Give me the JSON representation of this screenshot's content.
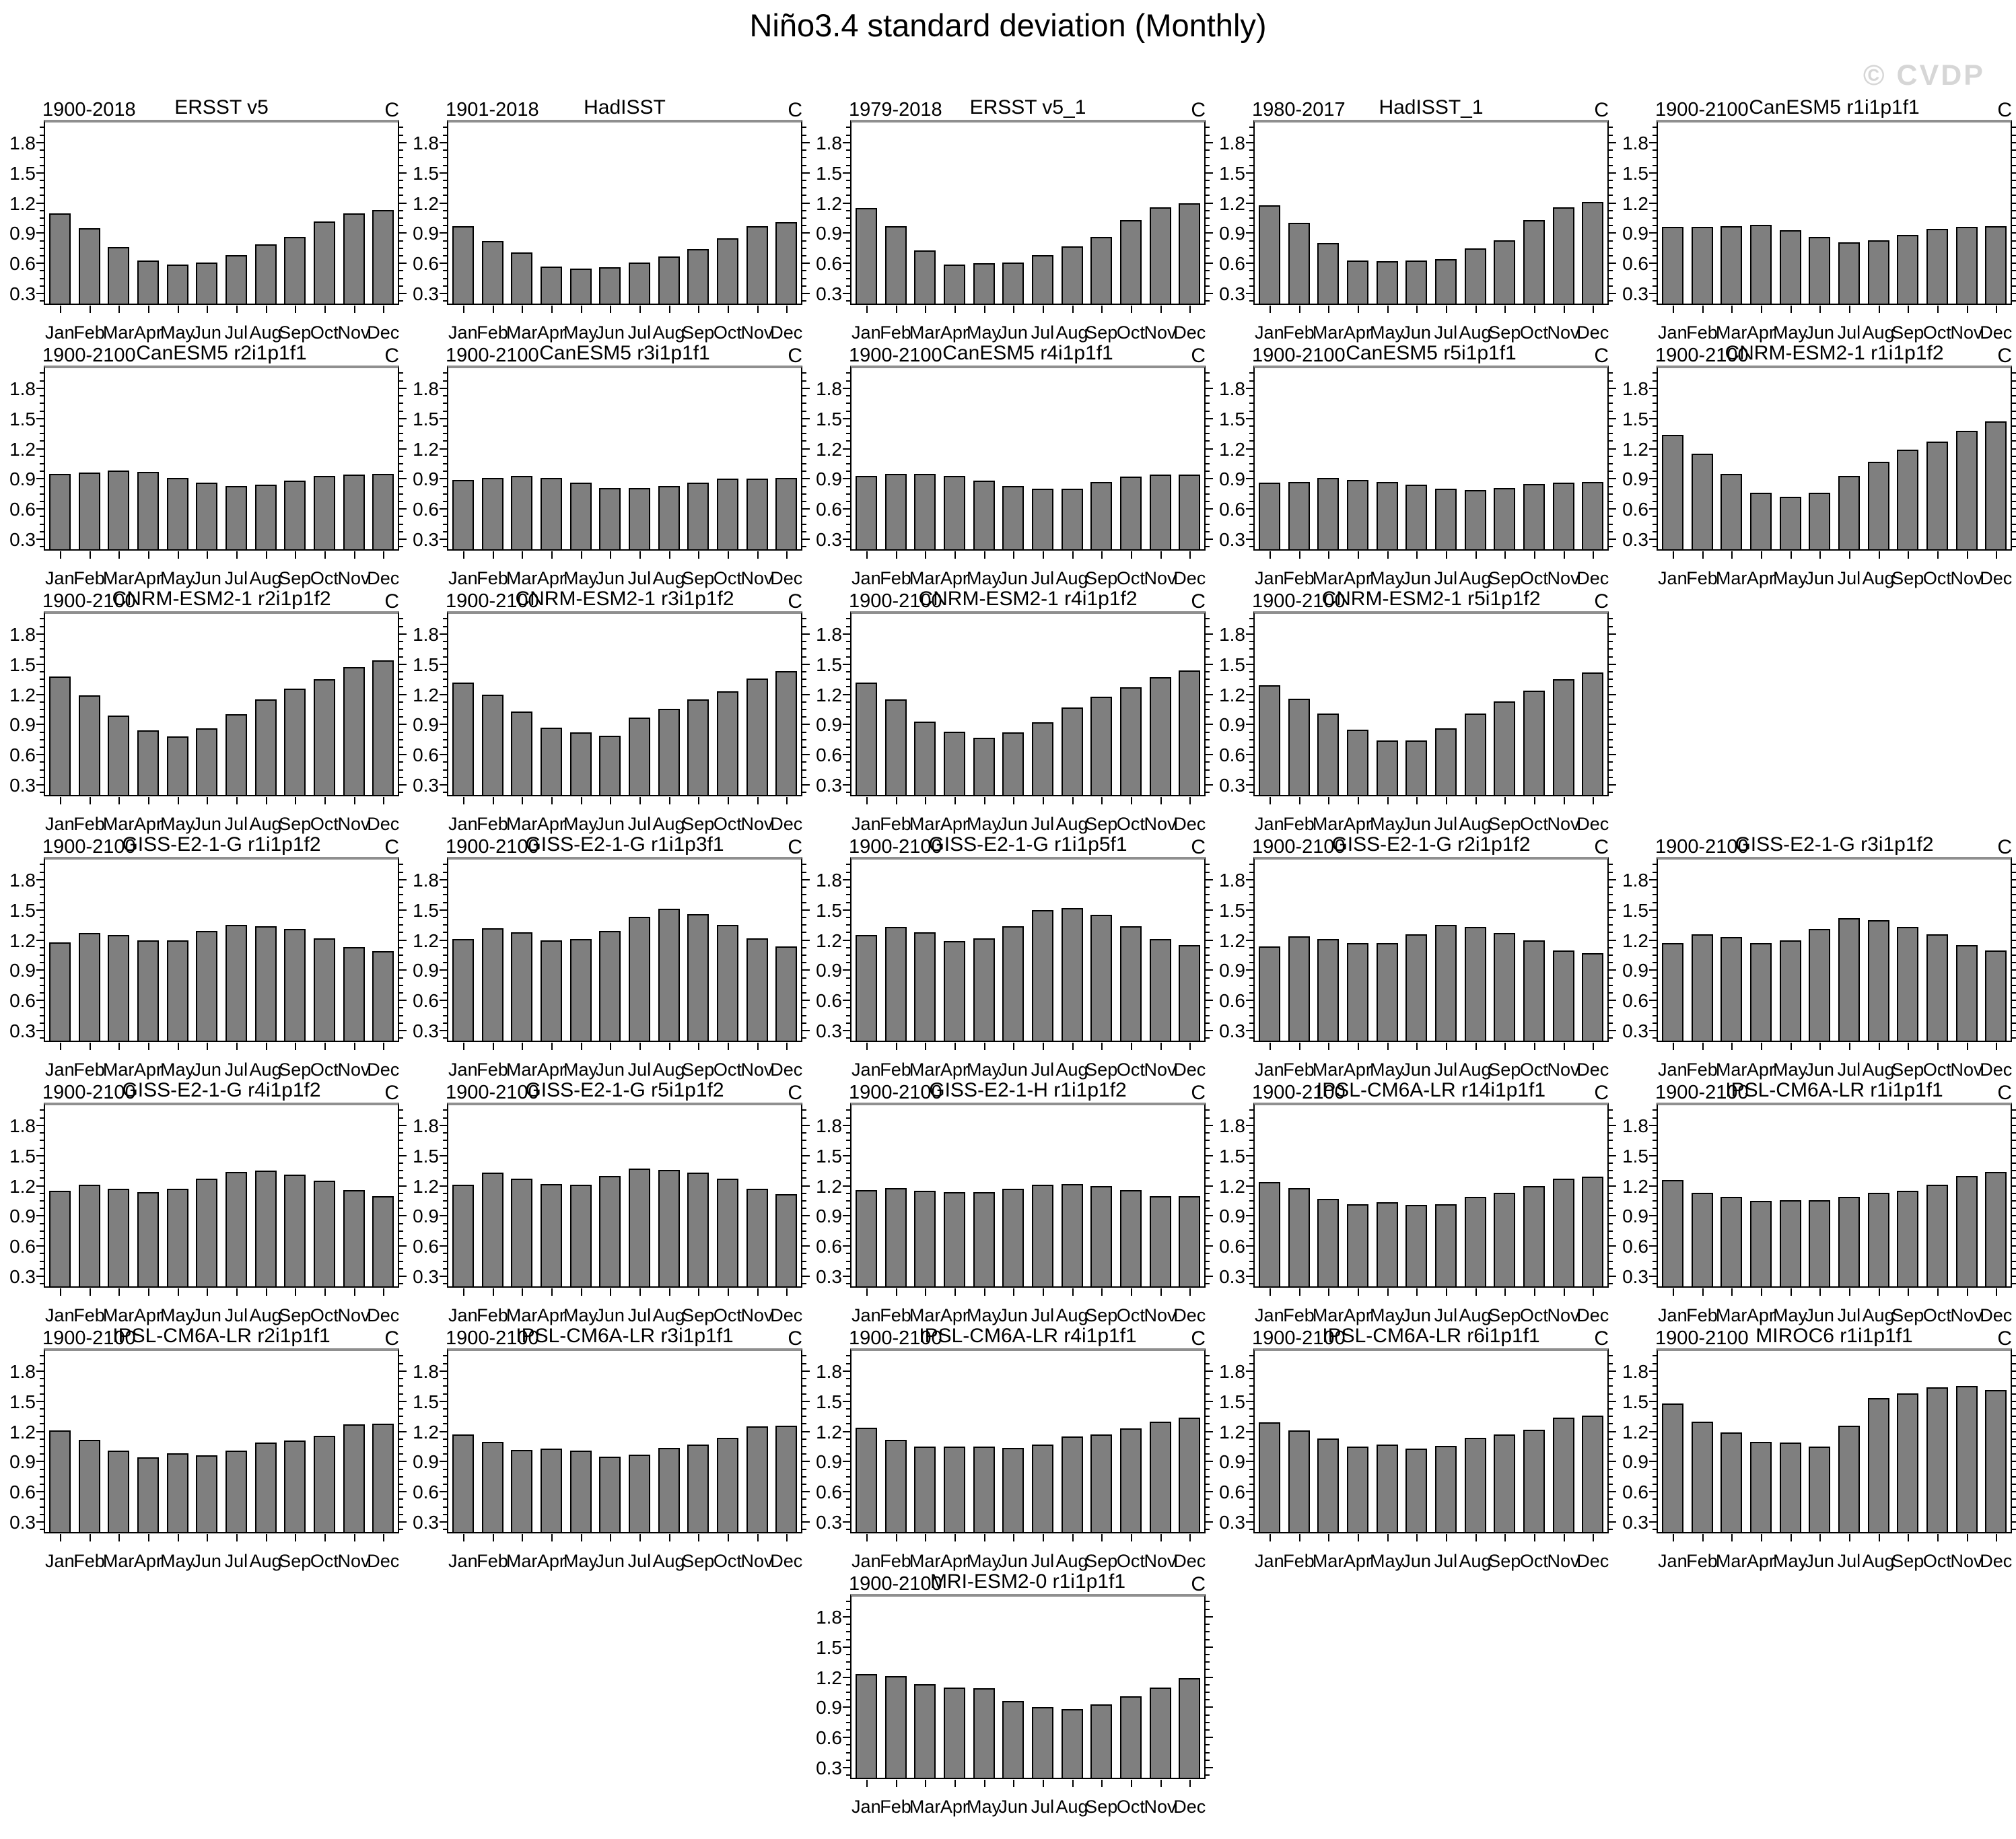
{
  "page": {
    "title": "Niño3.4 standard deviation (Monthly)",
    "watermark": "© CVDP"
  },
  "axis": {
    "unit": "C",
    "months": [
      "Jan",
      "Feb",
      "Mar",
      "Apr",
      "May",
      "Jun",
      "Jul",
      "Aug",
      "Sep",
      "Oct",
      "Nov",
      "Dec"
    ],
    "y_tick_labels": [
      "0.3",
      "0.6",
      "0.9",
      "1.2",
      "1.5",
      "1.8"
    ],
    "y_tick_values": [
      0.3,
      0.6,
      0.9,
      1.2,
      1.5,
      1.8
    ],
    "ylim": [
      0.2,
      2.0
    ],
    "minor_tick_step": 0.075,
    "grid": false
  },
  "colors": {
    "bar": "#7f7f7f",
    "bar_border": "#000000",
    "frame_top": "#8f8f8f",
    "watermark": "#d6d6d6"
  },
  "chart_data": [
    {
      "type": "bar",
      "row": 1,
      "col": 1,
      "period": "1900-2018",
      "title": "ERSST v5",
      "unit": "C",
      "categories": "months",
      "values": [
        1.1,
        0.95,
        0.76,
        0.63,
        0.59,
        0.61,
        0.68,
        0.79,
        0.86,
        1.02,
        1.1,
        1.13
      ]
    },
    {
      "type": "bar",
      "row": 1,
      "col": 2,
      "period": "1901-2018",
      "title": "HadISST",
      "unit": "C",
      "categories": "months",
      "values": [
        0.97,
        0.82,
        0.71,
        0.57,
        0.55,
        0.56,
        0.61,
        0.67,
        0.74,
        0.85,
        0.97,
        1.01
      ]
    },
    {
      "type": "bar",
      "row": 1,
      "col": 3,
      "period": "1979-2018",
      "title": "ERSST v5_1",
      "unit": "C",
      "categories": "months",
      "values": [
        1.15,
        0.97,
        0.73,
        0.59,
        0.6,
        0.61,
        0.68,
        0.77,
        0.86,
        1.03,
        1.16,
        1.2
      ]
    },
    {
      "type": "bar",
      "row": 1,
      "col": 4,
      "period": "1980-2017",
      "title": "HadISST_1",
      "unit": "C",
      "categories": "months",
      "values": [
        1.18,
        1.0,
        0.8,
        0.63,
        0.62,
        0.63,
        0.64,
        0.75,
        0.83,
        1.03,
        1.16,
        1.21
      ]
    },
    {
      "type": "bar",
      "row": 1,
      "col": 5,
      "period": "1900-2100",
      "title": "CanESM5 r1i1p1f1",
      "unit": "C",
      "categories": "months",
      "values": [
        0.96,
        0.96,
        0.97,
        0.98,
        0.93,
        0.86,
        0.81,
        0.83,
        0.88,
        0.94,
        0.96,
        0.97
      ]
    },
    {
      "type": "bar",
      "row": 2,
      "col": 1,
      "period": "1900-2100",
      "title": "CanESM5 r2i1p1f1",
      "unit": "C",
      "categories": "months",
      "values": [
        0.95,
        0.96,
        0.98,
        0.97,
        0.91,
        0.86,
        0.83,
        0.84,
        0.88,
        0.93,
        0.94,
        0.95
      ]
    },
    {
      "type": "bar",
      "row": 2,
      "col": 2,
      "period": "1900-2100",
      "title": "CanESM5 r3i1p1f1",
      "unit": "C",
      "categories": "months",
      "values": [
        0.89,
        0.91,
        0.93,
        0.91,
        0.86,
        0.81,
        0.81,
        0.83,
        0.86,
        0.9,
        0.9,
        0.91
      ]
    },
    {
      "type": "bar",
      "row": 2,
      "col": 3,
      "period": "1900-2100",
      "title": "CanESM5 r4i1p1f1",
      "unit": "C",
      "categories": "months",
      "values": [
        0.93,
        0.95,
        0.95,
        0.93,
        0.88,
        0.83,
        0.8,
        0.8,
        0.87,
        0.92,
        0.94,
        0.94
      ]
    },
    {
      "type": "bar",
      "row": 2,
      "col": 4,
      "period": "1900-2100",
      "title": "CanESM5 r5i1p1f1",
      "unit": "C",
      "categories": "months",
      "values": [
        0.86,
        0.87,
        0.91,
        0.89,
        0.87,
        0.84,
        0.8,
        0.79,
        0.81,
        0.85,
        0.86,
        0.87
      ]
    },
    {
      "type": "bar",
      "row": 2,
      "col": 5,
      "period": "1900-2100",
      "title": "CNRM-ESM2-1 r1i1p1f2",
      "unit": "C",
      "categories": "months",
      "values": [
        1.34,
        1.15,
        0.95,
        0.76,
        0.72,
        0.76,
        0.93,
        1.07,
        1.19,
        1.27,
        1.38,
        1.47
      ]
    },
    {
      "type": "bar",
      "row": 3,
      "col": 1,
      "period": "1900-2100",
      "title": "CNRM-ESM2-1 r2i1p1f2",
      "unit": "C",
      "categories": "months",
      "values": [
        1.38,
        1.19,
        0.99,
        0.84,
        0.78,
        0.86,
        1.0,
        1.15,
        1.26,
        1.35,
        1.47,
        1.54
      ]
    },
    {
      "type": "bar",
      "row": 3,
      "col": 2,
      "period": "1900-2100",
      "title": "CNRM-ESM2-1 r3i1p1f2",
      "unit": "C",
      "categories": "months",
      "values": [
        1.32,
        1.2,
        1.03,
        0.87,
        0.82,
        0.79,
        0.97,
        1.06,
        1.15,
        1.23,
        1.36,
        1.43
      ]
    },
    {
      "type": "bar",
      "row": 3,
      "col": 3,
      "period": "1900-2100",
      "title": "CNRM-ESM2-1 r4i1p1f2",
      "unit": "C",
      "categories": "months",
      "values": [
        1.32,
        1.15,
        0.93,
        0.83,
        0.77,
        0.82,
        0.92,
        1.07,
        1.18,
        1.27,
        1.37,
        1.44
      ]
    },
    {
      "type": "bar",
      "row": 3,
      "col": 4,
      "period": "1900-2100",
      "title": "CNRM-ESM2-1 r5i1p1f2",
      "unit": "C",
      "categories": "months",
      "values": [
        1.29,
        1.16,
        1.01,
        0.85,
        0.74,
        0.74,
        0.86,
        1.01,
        1.13,
        1.24,
        1.35,
        1.42
      ]
    },
    {
      "type": "bar",
      "row": 4,
      "col": 1,
      "period": "1900-2100",
      "title": "GISS-E2-1-G r1i1p1f2",
      "unit": "C",
      "categories": "months",
      "values": [
        1.18,
        1.27,
        1.25,
        1.2,
        1.2,
        1.29,
        1.35,
        1.34,
        1.31,
        1.22,
        1.13,
        1.09
      ]
    },
    {
      "type": "bar",
      "row": 4,
      "col": 2,
      "period": "1900-2100",
      "title": "GISS-E2-1-G r1i1p3f1",
      "unit": "C",
      "categories": "months",
      "values": [
        1.21,
        1.32,
        1.28,
        1.2,
        1.21,
        1.29,
        1.43,
        1.51,
        1.46,
        1.35,
        1.22,
        1.14
      ]
    },
    {
      "type": "bar",
      "row": 4,
      "col": 3,
      "period": "1900-2100",
      "title": "GISS-E2-1-G r1i1p5f1",
      "unit": "C",
      "categories": "months",
      "values": [
        1.25,
        1.33,
        1.28,
        1.19,
        1.22,
        1.34,
        1.5,
        1.52,
        1.45,
        1.34,
        1.21,
        1.15
      ]
    },
    {
      "type": "bar",
      "row": 4,
      "col": 4,
      "period": "1900-2100",
      "title": "GISS-E2-1-G r2i1p1f2",
      "unit": "C",
      "categories": "months",
      "values": [
        1.14,
        1.24,
        1.21,
        1.17,
        1.17,
        1.26,
        1.35,
        1.33,
        1.27,
        1.2,
        1.1,
        1.07
      ]
    },
    {
      "type": "bar",
      "row": 4,
      "col": 5,
      "period": "1900-2100",
      "title": "GISS-E2-1-G r3i1p1f2",
      "unit": "C",
      "categories": "months",
      "values": [
        1.17,
        1.26,
        1.23,
        1.17,
        1.2,
        1.31,
        1.42,
        1.4,
        1.33,
        1.26,
        1.15,
        1.1
      ]
    },
    {
      "type": "bar",
      "row": 5,
      "col": 1,
      "period": "1900-2100",
      "title": "GISS-E2-1-G r4i1p1f2",
      "unit": "C",
      "categories": "months",
      "values": [
        1.15,
        1.21,
        1.17,
        1.14,
        1.17,
        1.27,
        1.34,
        1.35,
        1.31,
        1.25,
        1.16,
        1.1
      ]
    },
    {
      "type": "bar",
      "row": 5,
      "col": 2,
      "period": "1900-2100",
      "title": "GISS-E2-1-G r5i1p1f2",
      "unit": "C",
      "categories": "months",
      "values": [
        1.21,
        1.33,
        1.27,
        1.22,
        1.21,
        1.3,
        1.37,
        1.36,
        1.33,
        1.27,
        1.17,
        1.12
      ]
    },
    {
      "type": "bar",
      "row": 5,
      "col": 3,
      "period": "1900-2100",
      "title": "GISS-E2-1-H r1i1p1f2",
      "unit": "C",
      "categories": "months",
      "values": [
        1.16,
        1.18,
        1.15,
        1.14,
        1.14,
        1.17,
        1.21,
        1.22,
        1.2,
        1.16,
        1.1,
        1.1
      ]
    },
    {
      "type": "bar",
      "row": 5,
      "col": 4,
      "period": "1900-2100",
      "title": "IPSL-CM6A-LR r14i1p1f1",
      "unit": "C",
      "categories": "months",
      "values": [
        1.24,
        1.18,
        1.07,
        1.02,
        1.04,
        1.01,
        1.02,
        1.09,
        1.13,
        1.2,
        1.27,
        1.29
      ]
    },
    {
      "type": "bar",
      "row": 5,
      "col": 5,
      "period": "1900-2100",
      "title": "IPSL-CM6A-LR r1i1p1f1",
      "unit": "C",
      "categories": "months",
      "values": [
        1.26,
        1.13,
        1.09,
        1.05,
        1.06,
        1.06,
        1.09,
        1.13,
        1.15,
        1.21,
        1.3,
        1.34
      ]
    },
    {
      "type": "bar",
      "row": 6,
      "col": 1,
      "period": "1900-2100",
      "title": "IPSL-CM6A-LR r2i1p1f1",
      "unit": "C",
      "categories": "months",
      "values": [
        1.21,
        1.12,
        1.01,
        0.94,
        0.98,
        0.96,
        1.01,
        1.09,
        1.11,
        1.16,
        1.27,
        1.28
      ]
    },
    {
      "type": "bar",
      "row": 6,
      "col": 2,
      "period": "1900-2100",
      "title": "IPSL-CM6A-LR r3i1p1f1",
      "unit": "C",
      "categories": "months",
      "values": [
        1.17,
        1.1,
        1.02,
        1.03,
        1.01,
        0.95,
        0.97,
        1.04,
        1.07,
        1.14,
        1.25,
        1.26
      ]
    },
    {
      "type": "bar",
      "row": 6,
      "col": 3,
      "period": "1900-2100",
      "title": "IPSL-CM6A-LR r4i1p1f1",
      "unit": "C",
      "categories": "months",
      "values": [
        1.24,
        1.12,
        1.05,
        1.05,
        1.05,
        1.04,
        1.07,
        1.15,
        1.17,
        1.23,
        1.3,
        1.34
      ]
    },
    {
      "type": "bar",
      "row": 6,
      "col": 4,
      "period": "1900-2100",
      "title": "IPSL-CM6A-LR r6i1p1f1",
      "unit": "C",
      "categories": "months",
      "values": [
        1.29,
        1.21,
        1.13,
        1.05,
        1.07,
        1.03,
        1.06,
        1.14,
        1.17,
        1.22,
        1.34,
        1.36
      ]
    },
    {
      "type": "bar",
      "row": 6,
      "col": 5,
      "period": "1900-2100",
      "title": "MIROC6 r1i1p1f1",
      "unit": "C",
      "categories": "months",
      "values": [
        1.48,
        1.3,
        1.19,
        1.1,
        1.09,
        1.05,
        1.26,
        1.53,
        1.58,
        1.64,
        1.65,
        1.61
      ]
    },
    {
      "type": "bar",
      "row": 7,
      "col": 3,
      "period": "1900-2100",
      "title": "MRI-ESM2-0 r1i1p1f1",
      "unit": "C",
      "categories": "months",
      "values": [
        1.23,
        1.21,
        1.13,
        1.1,
        1.09,
        0.96,
        0.9,
        0.88,
        0.93,
        1.01,
        1.1,
        1.19
      ]
    }
  ]
}
